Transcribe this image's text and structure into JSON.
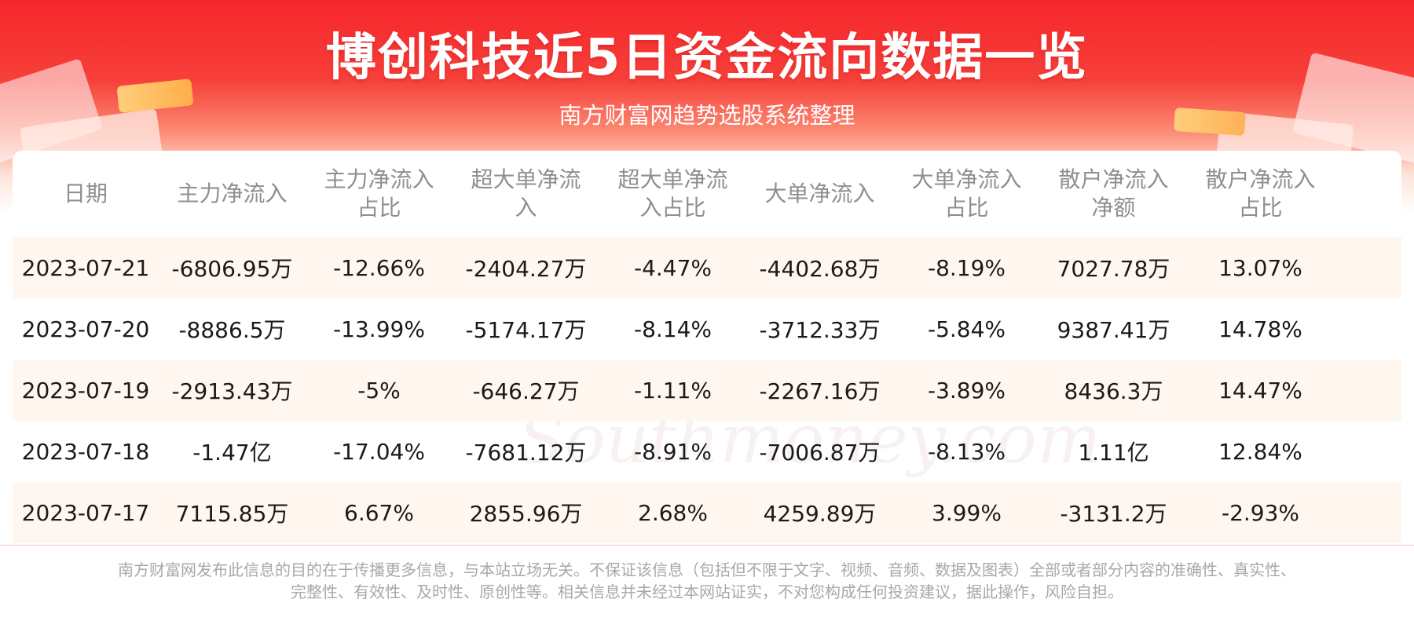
{
  "title": "博创科技近5日资金流向数据一览",
  "subtitle": "南方财富网趋势选股系统整理",
  "watermark": {
    "cn": "南方财富网",
    "en": "Southmoney.com"
  },
  "table": {
    "headers": [
      [
        "日期"
      ],
      [
        "主力净流入"
      ],
      [
        "主力净流入",
        "占比"
      ],
      [
        "超大单净流",
        "入"
      ],
      [
        "超大单净流",
        "入占比"
      ],
      [
        "大单净流入"
      ],
      [
        "大单净流入",
        "占比"
      ],
      [
        "散户净流入",
        "净额"
      ],
      [
        "散户净流入",
        "占比"
      ]
    ],
    "rows": [
      [
        "2023-07-21",
        "-6806.95万",
        "-12.66%",
        "-2404.27万",
        "-4.47%",
        "-4402.68万",
        "-8.19%",
        "7027.78万",
        "13.07%"
      ],
      [
        "2023-07-20",
        "-8886.5万",
        "-13.99%",
        "-5174.17万",
        "-8.14%",
        "-3712.33万",
        "-5.84%",
        "9387.41万",
        "14.78%"
      ],
      [
        "2023-07-19",
        "-2913.43万",
        "-5%",
        "-646.27万",
        "-1.11%",
        "-2267.16万",
        "-3.89%",
        "8436.3万",
        "14.47%"
      ],
      [
        "2023-07-18",
        "-1.47亿",
        "-17.04%",
        "-7681.12万",
        "-8.91%",
        "-7006.87万",
        "-8.13%",
        "1.11亿",
        "12.84%"
      ],
      [
        "2023-07-17",
        "7115.85万",
        "6.67%",
        "2855.96万",
        "2.68%",
        "4259.89万",
        "3.99%",
        "-3131.2万",
        "-2.93%"
      ]
    ]
  },
  "footer": {
    "line1": "南方财富网发布此信息的目的在于传播更多信息，与本站立场无关。不保证该信息（包括但不限于文字、视频、音频、数据及图表）全部或者部分内容的准确性、真实性、",
    "line2": "完整性、有效性、及时性、原创性等。相关信息并未经过本网站证实，不对您构成任何投资建议，据此操作，风险自担。"
  },
  "colors": {
    "banner_red": "#f5262b",
    "row_shade": "#fff6ef",
    "header_text": "#8f8f8f"
  }
}
